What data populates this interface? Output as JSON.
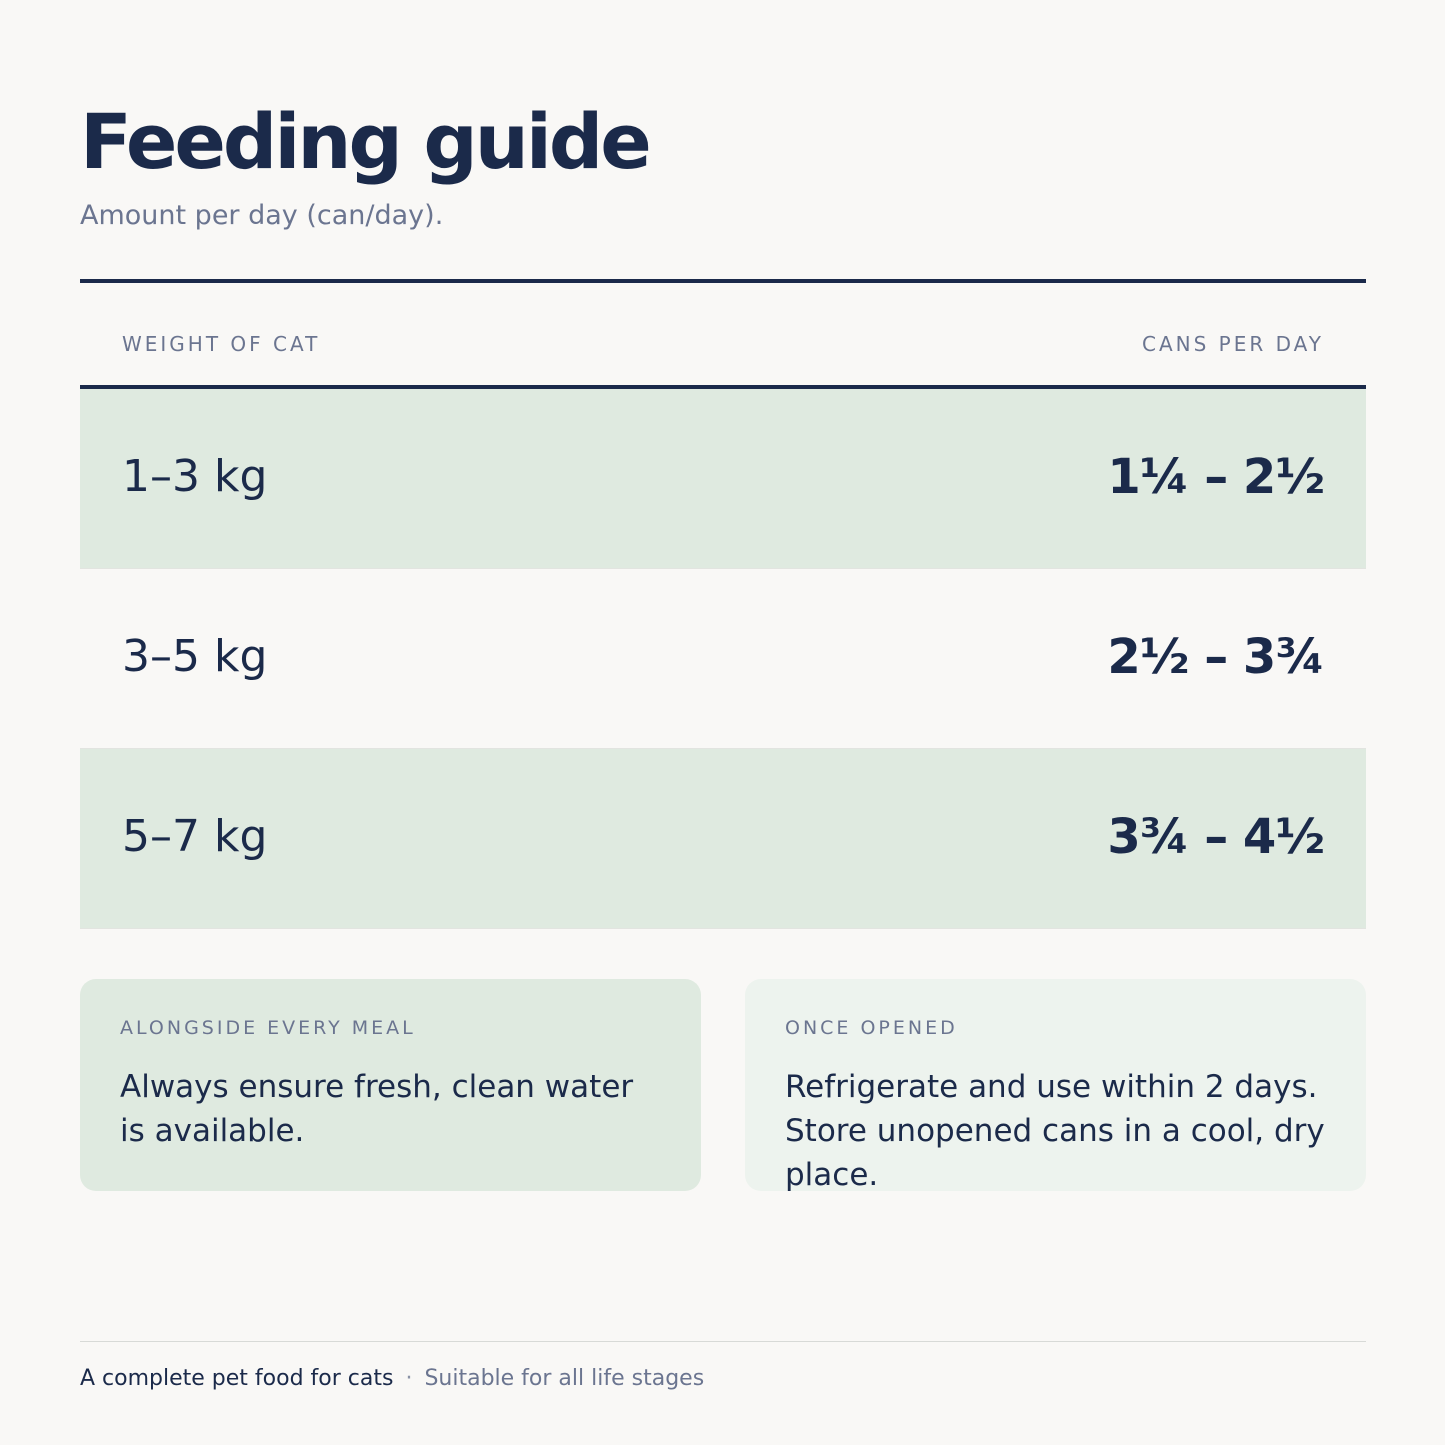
{
  "header": {
    "title": "Feeding guide",
    "subtitle": "Amount per day (can/day)."
  },
  "table": {
    "columns": [
      "WEIGHT OF CAT",
      "CANS PER DAY"
    ],
    "rows": [
      {
        "weight": "1–3 kg",
        "cans": "1¼ – 2½"
      },
      {
        "weight": "3–5 kg",
        "cans": "2½ – 3¾"
      },
      {
        "weight": "5–7 kg",
        "cans": "3¾ – 4½"
      }
    ]
  },
  "cards": [
    {
      "label": "ALONGSIDE EVERY MEAL",
      "text": "Always ensure fresh, clean water is available."
    },
    {
      "label": "ONCE OPENED",
      "text": "Refrigerate and use within 2 days. Store unopened cans in a cool, dry place."
    }
  ],
  "footer": {
    "main": "A complete pet food for cats",
    "separator": "·",
    "sub": "Suitable for all life stages"
  },
  "colors": {
    "ink": "#1b2a4a",
    "muted": "#6b7590",
    "shade": "#dfeae0",
    "background": "#f9f8f6"
  }
}
